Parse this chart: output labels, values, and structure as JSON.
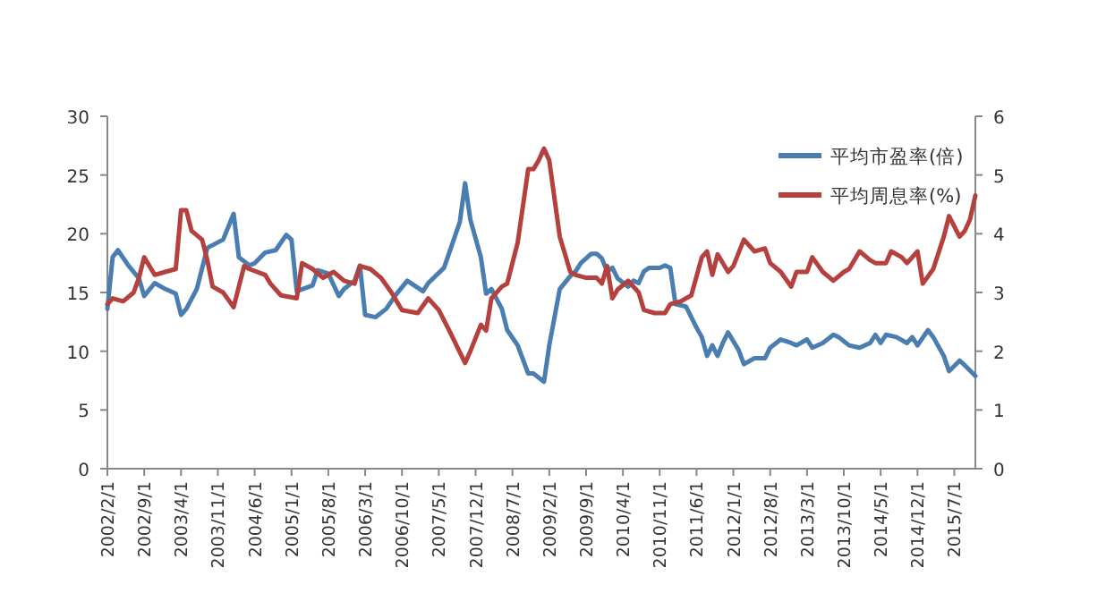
{
  "chart_data": {
    "type": "line",
    "xlim": [
      "2002-02",
      "2015-11"
    ],
    "xticks": [
      {
        "value": "2002-02",
        "label": "2002/2/1"
      },
      {
        "value": "2002-09",
        "label": "2002/9/1"
      },
      {
        "value": "2003-04",
        "label": "2003/4/1"
      },
      {
        "value": "2003-11",
        "label": "2003/11/1"
      },
      {
        "value": "2004-06",
        "label": "2004/6/1"
      },
      {
        "value": "2005-01",
        "label": "2005/1/1"
      },
      {
        "value": "2005-08",
        "label": "2005/8/1"
      },
      {
        "value": "2006-03",
        "label": "2006/3/1"
      },
      {
        "value": "2006-10",
        "label": "2006/10/1"
      },
      {
        "value": "2007-05",
        "label": "2007/5/1"
      },
      {
        "value": "2007-12",
        "label": "2007/12/1"
      },
      {
        "value": "2008-07",
        "label": "2008/7/1"
      },
      {
        "value": "2009-02",
        "label": "2009/2/1"
      },
      {
        "value": "2009-09",
        "label": "2009/9/1"
      },
      {
        "value": "2010-04",
        "label": "2010/4/1"
      },
      {
        "value": "2010-11",
        "label": "2010/11/1"
      },
      {
        "value": "2011-06",
        "label": "2011/6/1"
      },
      {
        "value": "2012-01",
        "label": "2012/1/1"
      },
      {
        "value": "2012-08",
        "label": "2012/8/1"
      },
      {
        "value": "2013-03",
        "label": "2013/3/1"
      },
      {
        "value": "2013-10",
        "label": "2013/10/1"
      },
      {
        "value": "2014-05",
        "label": "2014/5/1"
      },
      {
        "value": "2014-12",
        "label": "2014/12/1"
      },
      {
        "value": "2015-07",
        "label": "2015/7/1"
      }
    ],
    "ylim": [
      0,
      30
    ],
    "yticks": [
      0,
      5,
      10,
      15,
      20,
      25,
      30
    ],
    "y2lim": [
      0,
      6
    ],
    "y2ticks": [
      0,
      1,
      2,
      3,
      4,
      5,
      6
    ],
    "grid": false,
    "legend": "top right",
    "marker": "none",
    "line_style": "solid",
    "series": [
      {
        "name": "平均市盈率(倍)",
        "color": "#4a7eb0",
        "x": [
          "2002-02",
          "2002-03",
          "2002-04",
          "2002-06",
          "2002-08",
          "2002-09",
          "2002-11",
          "2003-01",
          "2003-03",
          "2003-04",
          "2003-05",
          "2003-07",
          "2003-09",
          "2003-12",
          "2004-02",
          "2004-03",
          "2004-05",
          "2004-06",
          "2004-08",
          "2004-10",
          "2004-12",
          "2005-01",
          "2005-02",
          "2005-05",
          "2005-06",
          "2005-08",
          "2005-10",
          "2005-11",
          "2006-01",
          "2006-02",
          "2006-03",
          "2006-05",
          "2006-07",
          "2006-09",
          "2006-11",
          "2007-02",
          "2007-03",
          "2007-06",
          "2007-07",
          "2007-09",
          "2007-10",
          "2007-11",
          "2008-01",
          "2008-02",
          "2008-03",
          "2008-05",
          "2008-06",
          "2008-08",
          "2008-10",
          "2008-11",
          "2009-01",
          "2009-02",
          "2009-04",
          "2009-06",
          "2009-07",
          "2009-08",
          "2009-10",
          "2009-11",
          "2009-12",
          "2010-01",
          "2010-02",
          "2010-03",
          "2010-05",
          "2010-06",
          "2010-07",
          "2010-08",
          "2010-09",
          "2010-11",
          "2010-12",
          "2011-01",
          "2011-02",
          "2011-04",
          "2011-06",
          "2011-07",
          "2011-08",
          "2011-09",
          "2011-10",
          "2011-11",
          "2011-12",
          "2012-02",
          "2012-03",
          "2012-05",
          "2012-07",
          "2012-08",
          "2012-10",
          "2012-12",
          "2013-01",
          "2013-03",
          "2013-04",
          "2013-06",
          "2013-08",
          "2013-09",
          "2013-11",
          "2014-01",
          "2014-03",
          "2014-04",
          "2014-05",
          "2014-06",
          "2014-08",
          "2014-10",
          "2014-11",
          "2014-12",
          "2015-02",
          "2015-03",
          "2015-05",
          "2015-06",
          "2015-08",
          "2015-09",
          "2015-11"
        ],
        "values": [
          13.6,
          18.0,
          18.6,
          17.3,
          16.2,
          14.7,
          15.8,
          15.3,
          14.9,
          13.1,
          13.6,
          15.3,
          18.8,
          19.5,
          21.7,
          18.0,
          17.3,
          17.5,
          18.4,
          18.6,
          19.9,
          19.5,
          15.1,
          15.6,
          16.9,
          16.6,
          14.7,
          15.3,
          16.0,
          17.3,
          13.1,
          12.9,
          13.6,
          14.9,
          16.0,
          15.1,
          15.8,
          17.1,
          18.4,
          21.0,
          24.3,
          21.2,
          18.0,
          14.9,
          15.3,
          13.6,
          11.8,
          10.5,
          8.1,
          8.1,
          7.4,
          10.5,
          15.3,
          16.4,
          16.8,
          17.5,
          18.3,
          18.3,
          17.9,
          16.8,
          17.1,
          16.2,
          15.5,
          16.0,
          15.8,
          16.8,
          17.1,
          17.1,
          17.3,
          17.1,
          14.0,
          13.8,
          12.0,
          11.2,
          9.6,
          10.5,
          9.6,
          10.7,
          11.6,
          10.1,
          8.9,
          9.4,
          9.4,
          10.3,
          11.0,
          10.7,
          10.5,
          11.0,
          10.3,
          10.7,
          11.4,
          11.2,
          10.5,
          10.3,
          10.7,
          11.4,
          10.7,
          11.4,
          11.2,
          10.7,
          11.2,
          10.5,
          11.8,
          11.2,
          9.6,
          8.3,
          9.2,
          8.8,
          7.9
        ]
      },
      {
        "name": "平均周息率(%)",
        "color": "#b5413e",
        "axis": "y2",
        "x": [
          "2002-02",
          "2002-03",
          "2002-05",
          "2002-07",
          "2002-08",
          "2002-09",
          "2002-11",
          "2003-01",
          "2003-03",
          "2003-04",
          "2003-05",
          "2003-06",
          "2003-08",
          "2003-09",
          "2003-10",
          "2003-12",
          "2004-02",
          "2004-04",
          "2004-05",
          "2004-08",
          "2004-09",
          "2004-11",
          "2005-02",
          "2005-03",
          "2005-05",
          "2005-07",
          "2005-09",
          "2005-11",
          "2006-01",
          "2006-02",
          "2006-04",
          "2006-06",
          "2006-08",
          "2006-10",
          "2007-01",
          "2007-03",
          "2007-05",
          "2007-07",
          "2007-10",
          "2007-11",
          "2008-01",
          "2008-02",
          "2008-03",
          "2008-05",
          "2008-06",
          "2008-08",
          "2008-10",
          "2008-11",
          "2008-12",
          "2009-01",
          "2009-02",
          "2009-04",
          "2009-06",
          "2009-07",
          "2009-09",
          "2009-11",
          "2009-12",
          "2010-01",
          "2010-02",
          "2010-03",
          "2010-05",
          "2010-07",
          "2010-08",
          "2010-10",
          "2010-12",
          "2011-01",
          "2011-03",
          "2011-05",
          "2011-07",
          "2011-08",
          "2011-09",
          "2011-10",
          "2011-12",
          "2012-01",
          "2012-03",
          "2012-05",
          "2012-07",
          "2012-08",
          "2012-10",
          "2012-12",
          "2013-01",
          "2013-03",
          "2013-04",
          "2013-06",
          "2013-08",
          "2013-10",
          "2013-11",
          "2014-01",
          "2014-03",
          "2014-04",
          "2014-06",
          "2014-07",
          "2014-09",
          "2014-10",
          "2014-12",
          "2015-01",
          "2015-03",
          "2015-05",
          "2015-06",
          "2015-08",
          "2015-09",
          "2015-10",
          "2015-11"
        ],
        "values": [
          2.8,
          2.9,
          2.85,
          3.0,
          3.25,
          3.6,
          3.3,
          3.35,
          3.4,
          4.4,
          4.4,
          4.05,
          3.9,
          3.55,
          3.1,
          3.0,
          2.75,
          3.45,
          3.4,
          3.3,
          3.15,
          2.95,
          2.9,
          3.5,
          3.4,
          3.25,
          3.35,
          3.2,
          3.15,
          3.45,
          3.4,
          3.25,
          3.0,
          2.7,
          2.65,
          2.9,
          2.7,
          2.35,
          1.8,
          2.0,
          2.45,
          2.35,
          2.9,
          3.1,
          3.15,
          3.85,
          5.1,
          5.1,
          5.25,
          5.45,
          5.25,
          3.95,
          3.35,
          3.3,
          3.25,
          3.25,
          3.15,
          3.45,
          2.9,
          3.05,
          3.2,
          3.0,
          2.7,
          2.65,
          2.65,
          2.8,
          2.85,
          2.95,
          3.6,
          3.7,
          3.3,
          3.65,
          3.35,
          3.45,
          3.9,
          3.7,
          3.75,
          3.5,
          3.35,
          3.1,
          3.35,
          3.35,
          3.6,
          3.35,
          3.2,
          3.35,
          3.4,
          3.7,
          3.55,
          3.5,
          3.5,
          3.7,
          3.6,
          3.5,
          3.7,
          3.15,
          3.4,
          3.95,
          4.3,
          3.95,
          4.05,
          4.25,
          4.65
        ]
      }
    ]
  }
}
